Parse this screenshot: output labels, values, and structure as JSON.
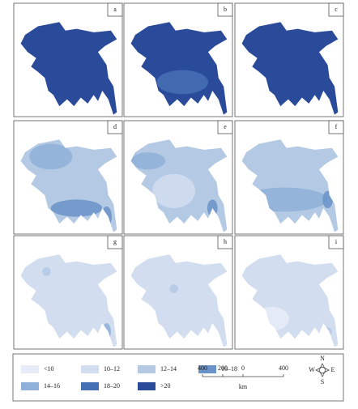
{
  "panels": [
    {
      "label": "a",
      "base": "#2a4a9a"
    },
    {
      "label": "b",
      "base": "#2a4a9a"
    },
    {
      "label": "c",
      "base": "#2a4a9a"
    },
    {
      "label": "d",
      "base": "#b3c9e4"
    },
    {
      "label": "e",
      "base": "#b3c9e4"
    },
    {
      "label": "f",
      "base": "#b3c9e4"
    },
    {
      "label": "g",
      "base": "#d2ddef"
    },
    {
      "label": "h",
      "base": "#d2ddef"
    },
    {
      "label": "i",
      "base": "#d2ddef"
    }
  ],
  "legend": [
    {
      "label": "<10",
      "color": "#e8ecf7"
    },
    {
      "label": "10–12",
      "color": "#d2ddef"
    },
    {
      "label": "12–14",
      "color": "#b3c9e4"
    },
    {
      "label": "14–16",
      "color": "#8fb0d8"
    },
    {
      "label": "16–18",
      "color": "#6a93c8"
    },
    {
      "label": "18–20",
      "color": "#4670b5"
    },
    {
      "label": ">20",
      "color": "#2a4a9a"
    }
  ],
  "scale": {
    "ticks": [
      "400",
      "200",
      "0",
      "400"
    ],
    "unit": "km"
  },
  "compass": {
    "north": "N",
    "south": "S",
    "west": "W",
    "east": "E"
  }
}
